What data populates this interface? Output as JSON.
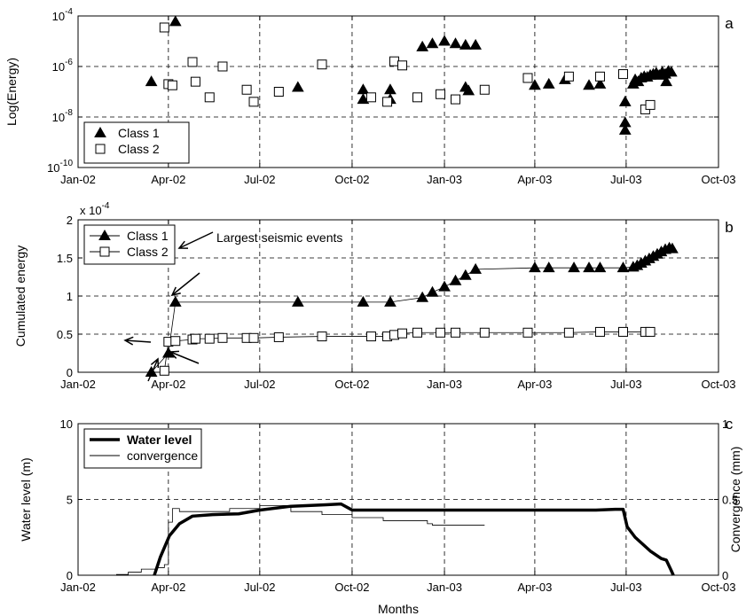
{
  "chart_data": [
    {
      "panel_label": "a",
      "type": "scatter",
      "ylabel": "Log(Energy)",
      "yscale": "log",
      "ylim": [
        1e-10,
        0.0001
      ],
      "yticks": [
        {
          "value": 1e-10,
          "base": "10",
          "exp": "-10"
        },
        {
          "value": 1e-08,
          "base": "10",
          "exp": "-8"
        },
        {
          "value": 1e-06,
          "base": "10",
          "exp": "-6"
        },
        {
          "value": 0.0001,
          "base": "10",
          "exp": "-4"
        }
      ],
      "xticks": [
        "Jan-02",
        "Apr-02",
        "Jul-02",
        "Oct-02",
        "Jan-03",
        "Apr-03",
        "Jul-03",
        "Oct-03"
      ],
      "xlim": [
        "2002-01-01",
        "2003-10-01"
      ],
      "grid": true,
      "legend_position": "bottom-left",
      "series": [
        {
          "name": "Class 1",
          "marker": "filled-triangle",
          "points": [
            [
              "2002-03-15",
              2.5e-07
            ],
            [
              "2002-04-08",
              6e-05
            ],
            [
              "2002-08-08",
              1.5e-07
            ],
            [
              "2002-10-12",
              1.2e-07
            ],
            [
              "2002-10-12",
              5e-08
            ],
            [
              "2002-11-08",
              1.2e-07
            ],
            [
              "2002-11-08",
              5e-08
            ],
            [
              "2002-12-10",
              6e-06
            ],
            [
              "2002-12-20",
              8e-06
            ],
            [
              "2003-01-01",
              1e-05
            ],
            [
              "2003-01-12",
              8e-06
            ],
            [
              "2003-01-22",
              7e-06
            ],
            [
              "2003-02-01",
              7e-06
            ],
            [
              "2003-01-22",
              1.5e-07
            ],
            [
              "2003-01-25",
              1.1e-07
            ],
            [
              "2003-04-01",
              1.8e-07
            ],
            [
              "2003-04-15",
              2e-07
            ],
            [
              "2003-05-01",
              3e-07
            ],
            [
              "2003-05-25",
              1.8e-07
            ],
            [
              "2003-06-05",
              2e-07
            ],
            [
              "2003-06-30",
              4e-08
            ],
            [
              "2003-06-30",
              6e-09
            ],
            [
              "2003-06-30",
              3e-09
            ],
            [
              "2003-07-08",
              2e-07
            ],
            [
              "2003-07-10",
              3e-07
            ],
            [
              "2003-07-13",
              2.5e-07
            ],
            [
              "2003-07-16",
              3.5e-07
            ],
            [
              "2003-07-19",
              4e-07
            ],
            [
              "2003-07-22",
              3.8e-07
            ],
            [
              "2003-07-25",
              4.5e-07
            ],
            [
              "2003-07-28",
              5e-07
            ],
            [
              "2003-07-31",
              5.5e-07
            ],
            [
              "2003-08-03",
              4.5e-07
            ],
            [
              "2003-08-06",
              6e-07
            ],
            [
              "2003-08-09",
              5e-07
            ],
            [
              "2003-08-12",
              6.5e-07
            ],
            [
              "2003-08-15",
              6e-07
            ],
            [
              "2003-08-10",
              2.5e-07
            ]
          ]
        },
        {
          "name": "Class 2",
          "marker": "open-square",
          "points": [
            [
              "2002-03-28",
              3.5e-05
            ],
            [
              "2002-04-01",
              2e-07
            ],
            [
              "2002-04-05",
              1.8e-07
            ],
            [
              "2002-04-25",
              1.5e-06
            ],
            [
              "2002-04-28",
              2.5e-07
            ],
            [
              "2002-05-12",
              6e-08
            ],
            [
              "2002-05-25",
              1e-06
            ],
            [
              "2002-06-18",
              1.2e-07
            ],
            [
              "2002-06-25",
              4e-08
            ],
            [
              "2002-07-20",
              1e-07
            ],
            [
              "2002-09-01",
              1.2e-06
            ],
            [
              "2002-10-20",
              6e-08
            ],
            [
              "2002-11-05",
              4e-08
            ],
            [
              "2002-11-12",
              1.6e-06
            ],
            [
              "2002-11-20",
              1.1e-06
            ],
            [
              "2002-12-05",
              6e-08
            ],
            [
              "2002-12-28",
              8e-08
            ],
            [
              "2003-01-12",
              5e-08
            ],
            [
              "2003-02-10",
              1.2e-07
            ],
            [
              "2003-03-25",
              3.5e-07
            ],
            [
              "2003-05-05",
              4e-07
            ],
            [
              "2003-06-05",
              4e-07
            ],
            [
              "2003-06-28",
              5e-07
            ],
            [
              "2003-07-20",
              2e-08
            ],
            [
              "2003-07-25",
              3e-08
            ]
          ]
        }
      ]
    },
    {
      "panel_label": "b",
      "type": "line",
      "ylabel": "Cumulated energy",
      "ylim": [
        0,
        0.0002
      ],
      "yscale_label": {
        "base": "x 10",
        "exp": "-4"
      },
      "yticks": [
        {
          "value": 0,
          "label": "0"
        },
        {
          "value": 5e-05,
          "label": "0.5"
        },
        {
          "value": 0.0001,
          "label": "1"
        },
        {
          "value": 0.00015,
          "label": "1.5"
        },
        {
          "value": 0.0002,
          "label": "2"
        }
      ],
      "xticks": [
        "Jan-02",
        "Apr-02",
        "Jul-02",
        "Oct-02",
        "Jan-03",
        "Apr-03",
        "Jul-03",
        "Oct-03"
      ],
      "xlim": [
        "2002-01-01",
        "2003-10-01"
      ],
      "grid": true,
      "legend_position": "top-left",
      "annotation": "Largest seismic events",
      "series": [
        {
          "name": "Class 1",
          "marker": "filled-triangle",
          "points": [
            [
              "2002-03-15",
              0
            ],
            [
              "2002-04-01",
              2.5e-05
            ],
            [
              "2002-04-08",
              9.2e-05
            ],
            [
              "2002-08-08",
              9.2e-05
            ],
            [
              "2002-10-12",
              9.2e-05
            ],
            [
              "2002-11-08",
              9.2e-05
            ],
            [
              "2002-12-10",
              9.8e-05
            ],
            [
              "2002-12-20",
              0.000105
            ],
            [
              "2003-01-01",
              0.000112
            ],
            [
              "2003-01-12",
              0.00012
            ],
            [
              "2003-01-22",
              0.000127
            ],
            [
              "2003-02-01",
              0.000135
            ],
            [
              "2003-04-01",
              0.000137
            ],
            [
              "2003-04-15",
              0.000137
            ],
            [
              "2003-05-10",
              0.000137
            ],
            [
              "2003-05-25",
              0.000137
            ],
            [
              "2003-06-05",
              0.000137
            ],
            [
              "2003-06-28",
              0.000137
            ],
            [
              "2003-07-08",
              0.000138
            ],
            [
              "2003-07-12",
              0.00014
            ],
            [
              "2003-07-16",
              0.000143
            ],
            [
              "2003-07-20",
              0.000146
            ],
            [
              "2003-07-24",
              0.000149
            ],
            [
              "2003-07-28",
              0.000152
            ],
            [
              "2003-08-01",
              0.000155
            ],
            [
              "2003-08-05",
              0.000158
            ],
            [
              "2003-08-09",
              0.000161
            ],
            [
              "2003-08-13",
              0.000163
            ],
            [
              "2003-08-16",
              0.000162
            ]
          ]
        },
        {
          "name": "Class 2",
          "marker": "open-square",
          "points": [
            [
              "2002-03-28",
              2e-06
            ],
            [
              "2002-04-01",
              4e-05
            ],
            [
              "2002-04-08",
              4.1e-05
            ],
            [
              "2002-04-25",
              4.3e-05
            ],
            [
              "2002-04-28",
              4.4e-05
            ],
            [
              "2002-05-12",
              4.4e-05
            ],
            [
              "2002-05-25",
              4.5e-05
            ],
            [
              "2002-06-18",
              4.5e-05
            ],
            [
              "2002-06-25",
              4.5e-05
            ],
            [
              "2002-07-20",
              4.6e-05
            ],
            [
              "2002-09-01",
              4.7e-05
            ],
            [
              "2002-10-20",
              4.7e-05
            ],
            [
              "2002-11-05",
              4.7e-05
            ],
            [
              "2002-11-12",
              4.9e-05
            ],
            [
              "2002-11-20",
              5.1e-05
            ],
            [
              "2002-12-05",
              5.2e-05
            ],
            [
              "2002-12-28",
              5.2e-05
            ],
            [
              "2003-01-12",
              5.2e-05
            ],
            [
              "2003-02-10",
              5.2e-05
            ],
            [
              "2003-03-25",
              5.2e-05
            ],
            [
              "2003-05-05",
              5.2e-05
            ],
            [
              "2003-06-05",
              5.3e-05
            ],
            [
              "2003-06-28",
              5.3e-05
            ],
            [
              "2003-07-20",
              5.3e-05
            ],
            [
              "2003-07-25",
              5.3e-05
            ]
          ]
        }
      ]
    },
    {
      "panel_label": "c",
      "type": "line",
      "xlabel": "Months",
      "ylabel": "Water level (m)",
      "y2label": "Convergence (mm)",
      "ylim": [
        0,
        10
      ],
      "y2lim": [
        0,
        1
      ],
      "yticks": [
        0,
        5,
        10
      ],
      "y2ticks": [
        0,
        0.5,
        1
      ],
      "xticks": [
        "Jan-02",
        "Apr-02",
        "Jul-02",
        "Oct-02",
        "Jan-03",
        "Apr-03",
        "Jul-03",
        "Oct-03"
      ],
      "xlim": [
        "2002-01-01",
        "2003-10-01"
      ],
      "grid": true,
      "legend_position": "top-left",
      "series": [
        {
          "name": "Water level",
          "axis": "left",
          "style": "thick",
          "points": [
            [
              "2002-03-18",
              0
            ],
            [
              "2002-03-24",
              1.2
            ],
            [
              "2002-04-02",
              2.6
            ],
            [
              "2002-04-12",
              3.4
            ],
            [
              "2002-04-25",
              3.9
            ],
            [
              "2002-05-15",
              4.0
            ],
            [
              "2002-06-10",
              4.05
            ],
            [
              "2002-07-01",
              4.3
            ],
            [
              "2002-08-01",
              4.55
            ],
            [
              "2002-09-05",
              4.65
            ],
            [
              "2002-09-20",
              4.7
            ],
            [
              "2002-10-01",
              4.3
            ],
            [
              "2002-11-01",
              4.3
            ],
            [
              "2003-06-01",
              4.3
            ],
            [
              "2003-06-20",
              4.35
            ],
            [
              "2003-06-28",
              4.35
            ],
            [
              "2003-07-02",
              3.2
            ],
            [
              "2003-07-10",
              2.5
            ],
            [
              "2003-07-25",
              1.6
            ],
            [
              "2003-08-05",
              1.1
            ],
            [
              "2003-08-10",
              1.0
            ],
            [
              "2003-08-15",
              0.3
            ],
            [
              "2003-08-17",
              0
            ]
          ]
        },
        {
          "name": "convergence",
          "axis": "right",
          "style": "thin",
          "points": [
            [
              "2002-02-08",
              0.005
            ],
            [
              "2002-02-20",
              0.02
            ],
            [
              "2002-03-05",
              0.04
            ],
            [
              "2002-03-20",
              0.05
            ],
            [
              "2002-03-28",
              0.07
            ],
            [
              "2002-04-01",
              0.35
            ],
            [
              "2002-04-05",
              0.44
            ],
            [
              "2002-04-12",
              0.42
            ],
            [
              "2002-05-01",
              0.42
            ],
            [
              "2002-06-01",
              0.44
            ],
            [
              "2002-07-01",
              0.46
            ],
            [
              "2002-08-01",
              0.42
            ],
            [
              "2002-09-01",
              0.4
            ],
            [
              "2002-10-01",
              0.38
            ],
            [
              "2002-11-01",
              0.36
            ],
            [
              "2002-12-15",
              0.34
            ],
            [
              "2002-12-20",
              0.33
            ],
            [
              "2003-02-10",
              0.33
            ]
          ]
        }
      ]
    }
  ]
}
